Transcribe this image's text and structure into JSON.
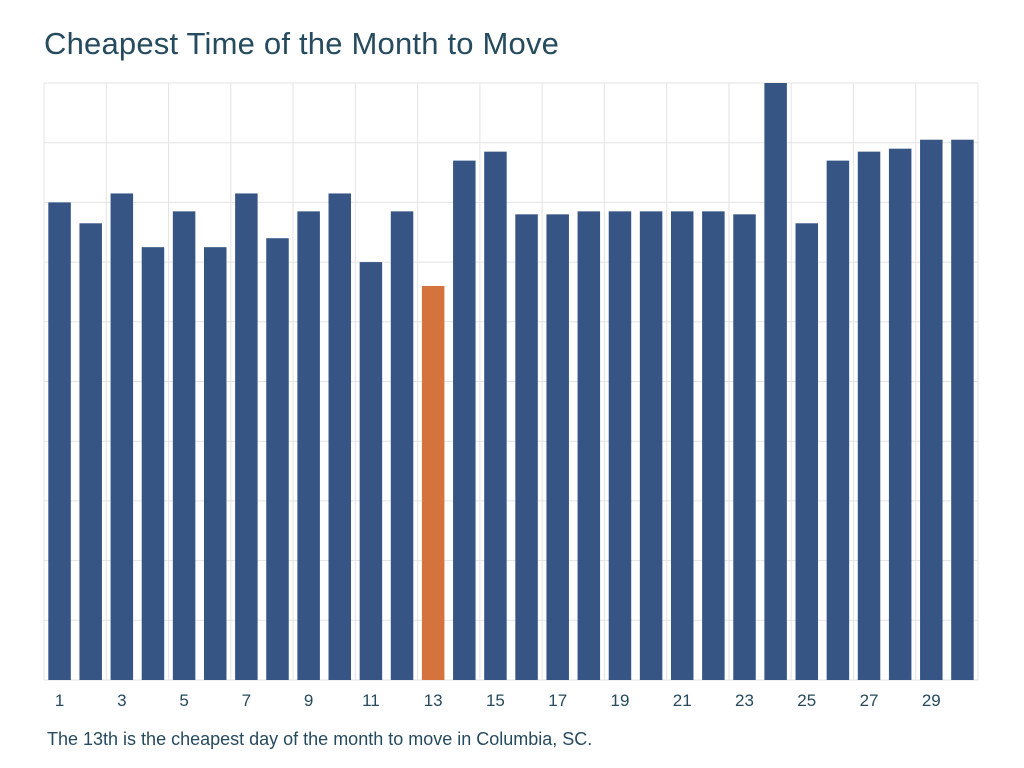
{
  "chart_data": {
    "type": "bar",
    "title": "Cheapest Time of the Month to Move",
    "caption": "The 13th is the cheapest day of the month to move in Columbia, SC.",
    "categories": [
      "1",
      "2",
      "3",
      "4",
      "5",
      "6",
      "7",
      "8",
      "9",
      "10",
      "11",
      "12",
      "13",
      "14",
      "15",
      "16",
      "17",
      "18",
      "19",
      "20",
      "21",
      "22",
      "23",
      "24",
      "25",
      "26",
      "27",
      "28",
      "29",
      "30"
    ],
    "tick_labels": [
      "1",
      "3",
      "5",
      "7",
      "9",
      "11",
      "13",
      "15",
      "17",
      "19",
      "21",
      "23",
      "25",
      "27",
      "29"
    ],
    "values": [
      8.0,
      7.65,
      8.15,
      7.25,
      7.85,
      7.25,
      8.15,
      7.4,
      7.85,
      8.15,
      7.0,
      7.85,
      6.6,
      8.7,
      8.85,
      7.8,
      7.8,
      7.85,
      7.85,
      7.85,
      7.85,
      7.85,
      7.8,
      10.0,
      7.65,
      8.7,
      8.85,
      8.9,
      9.05,
      9.05
    ],
    "ylim": [
      0,
      10
    ],
    "xlabel": "",
    "ylabel": "",
    "highlight_category": "13",
    "colors": {
      "bar": "#365585",
      "highlight": "#d4733d",
      "grid": "#e3e3e3",
      "text": "#264a5e"
    },
    "grid": true,
    "legend": "none"
  }
}
